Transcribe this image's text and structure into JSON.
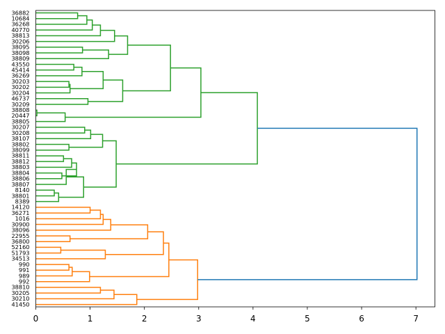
{
  "chart_data": {
    "type": "dendrogram",
    "orientation": "horizontal",
    "xlim": [
      0,
      7.35
    ],
    "x_ticks": [
      0,
      1,
      2,
      3,
      4,
      5,
      6,
      7
    ],
    "title": "",
    "xlabel": "",
    "ylabel": "",
    "grid": false,
    "leaves": [
      "36882",
      "10684",
      "36268",
      "40770",
      "38813",
      "30206",
      "38095",
      "38098",
      "38809",
      "43550",
      "45414",
      "36269",
      "30203",
      "30202",
      "30204",
      "46737",
      "30209",
      "38808",
      "20447",
      "38805",
      "30207",
      "30208",
      "38107",
      "38802",
      "38099",
      "38811",
      "38812",
      "38803",
      "38804",
      "38806",
      "38807",
      "8140",
      "38801",
      "8389",
      "14120",
      "36271",
      "1016",
      "30900",
      "38096",
      "22955",
      "36800",
      "52160",
      "51793",
      "34513",
      "990",
      "991",
      "989",
      "992",
      "38810",
      "30205",
      "30210",
      "41450"
    ],
    "series": [
      {
        "color": "#2ca02c",
        "merges": [
          {
            "a": "L0",
            "b": "L1",
            "h": 0.77
          },
          {
            "a": "N0",
            "b": "L2",
            "h": 0.94
          },
          {
            "a": "N1",
            "b": "L3",
            "h": 1.04
          },
          {
            "a": "N2",
            "b": "L4",
            "h": 1.19
          },
          {
            "a": "N3",
            "b": "L5",
            "h": 1.45
          },
          {
            "a": "L6",
            "b": "L7",
            "h": 0.86
          },
          {
            "a": "N5",
            "b": "L8",
            "h": 1.34
          },
          {
            "a": "N4",
            "b": "N6",
            "h": 1.69
          },
          {
            "a": "L9",
            "b": "L10",
            "h": 0.7
          },
          {
            "a": "N8",
            "b": "L11",
            "h": 0.85
          },
          {
            "a": "L12",
            "b": "L13",
            "h": 0.61
          },
          {
            "a": "N10",
            "b": "L14",
            "h": 0.63
          },
          {
            "a": "N9",
            "b": "N11",
            "h": 1.24
          },
          {
            "a": "L15",
            "b": "L16",
            "h": 0.96
          },
          {
            "a": "N12",
            "b": "N13",
            "h": 1.6
          },
          {
            "a": "N7",
            "b": "N14",
            "h": 2.48
          },
          {
            "a": "L17",
            "b": "L18",
            "h": 0.02
          },
          {
            "a": "N16",
            "b": "L19",
            "h": 0.54
          },
          {
            "a": "N15",
            "b": "N17",
            "h": 3.04
          },
          {
            "a": "L20",
            "b": "L21",
            "h": 0.9
          },
          {
            "a": "N19",
            "b": "L22",
            "h": 1.01
          },
          {
            "a": "L23",
            "b": "L24",
            "h": 0.61
          },
          {
            "a": "N20",
            "b": "N21",
            "h": 1.23
          },
          {
            "a": "L25",
            "b": "L26",
            "h": 0.51
          },
          {
            "a": "N23",
            "b": "L27",
            "h": 0.66
          },
          {
            "a": "L28",
            "b": "L29",
            "h": 0.48
          },
          {
            "a": "N24",
            "b": "N25",
            "h": 0.75
          },
          {
            "a": "N26",
            "b": "L30",
            "h": 0.56
          },
          {
            "a": "L31",
            "b": "L32",
            "h": 0.34
          },
          {
            "a": "N28",
            "b": "L33",
            "h": 0.42
          },
          {
            "a": "N27",
            "b": "N29",
            "h": 0.88
          },
          {
            "a": "N22",
            "b": "N30",
            "h": 1.48
          },
          {
            "a": "N18",
            "b": "N31",
            "h": 4.08
          }
        ]
      },
      {
        "color": "#ff7f0e",
        "merges": [
          {
            "a": "L34",
            "b": "L35",
            "h": 1.0
          },
          {
            "a": "N33",
            "b": "L36",
            "h": 1.19
          },
          {
            "a": "N34",
            "b": "L37",
            "h": 1.24
          },
          {
            "a": "N35",
            "b": "L38",
            "h": 1.38
          },
          {
            "a": "L39",
            "b": "L40",
            "h": 0.63
          },
          {
            "a": "N36",
            "b": "N37",
            "h": 2.06
          },
          {
            "a": "L41",
            "b": "L42",
            "h": 0.46
          },
          {
            "a": "N39",
            "b": "L43",
            "h": 1.28
          },
          {
            "a": "N38",
            "b": "N40",
            "h": 2.35
          },
          {
            "a": "L44",
            "b": "L45",
            "h": 0.61
          },
          {
            "a": "N42",
            "b": "L46",
            "h": 0.67
          },
          {
            "a": "N43",
            "b": "L47",
            "h": 0.99
          },
          {
            "a": "N41",
            "b": "N44",
            "h": 2.45
          },
          {
            "a": "L48",
            "b": "L49",
            "h": 1.19
          },
          {
            "a": "N46",
            "b": "L50",
            "h": 1.44
          },
          {
            "a": "N47",
            "b": "L51",
            "h": 1.86
          },
          {
            "a": "N45",
            "b": "N48",
            "h": 2.98
          }
        ]
      },
      {
        "color": "#1f77b4",
        "merges": [
          {
            "a": "N32",
            "b": "N49",
            "h": 7.02
          }
        ]
      }
    ]
  }
}
